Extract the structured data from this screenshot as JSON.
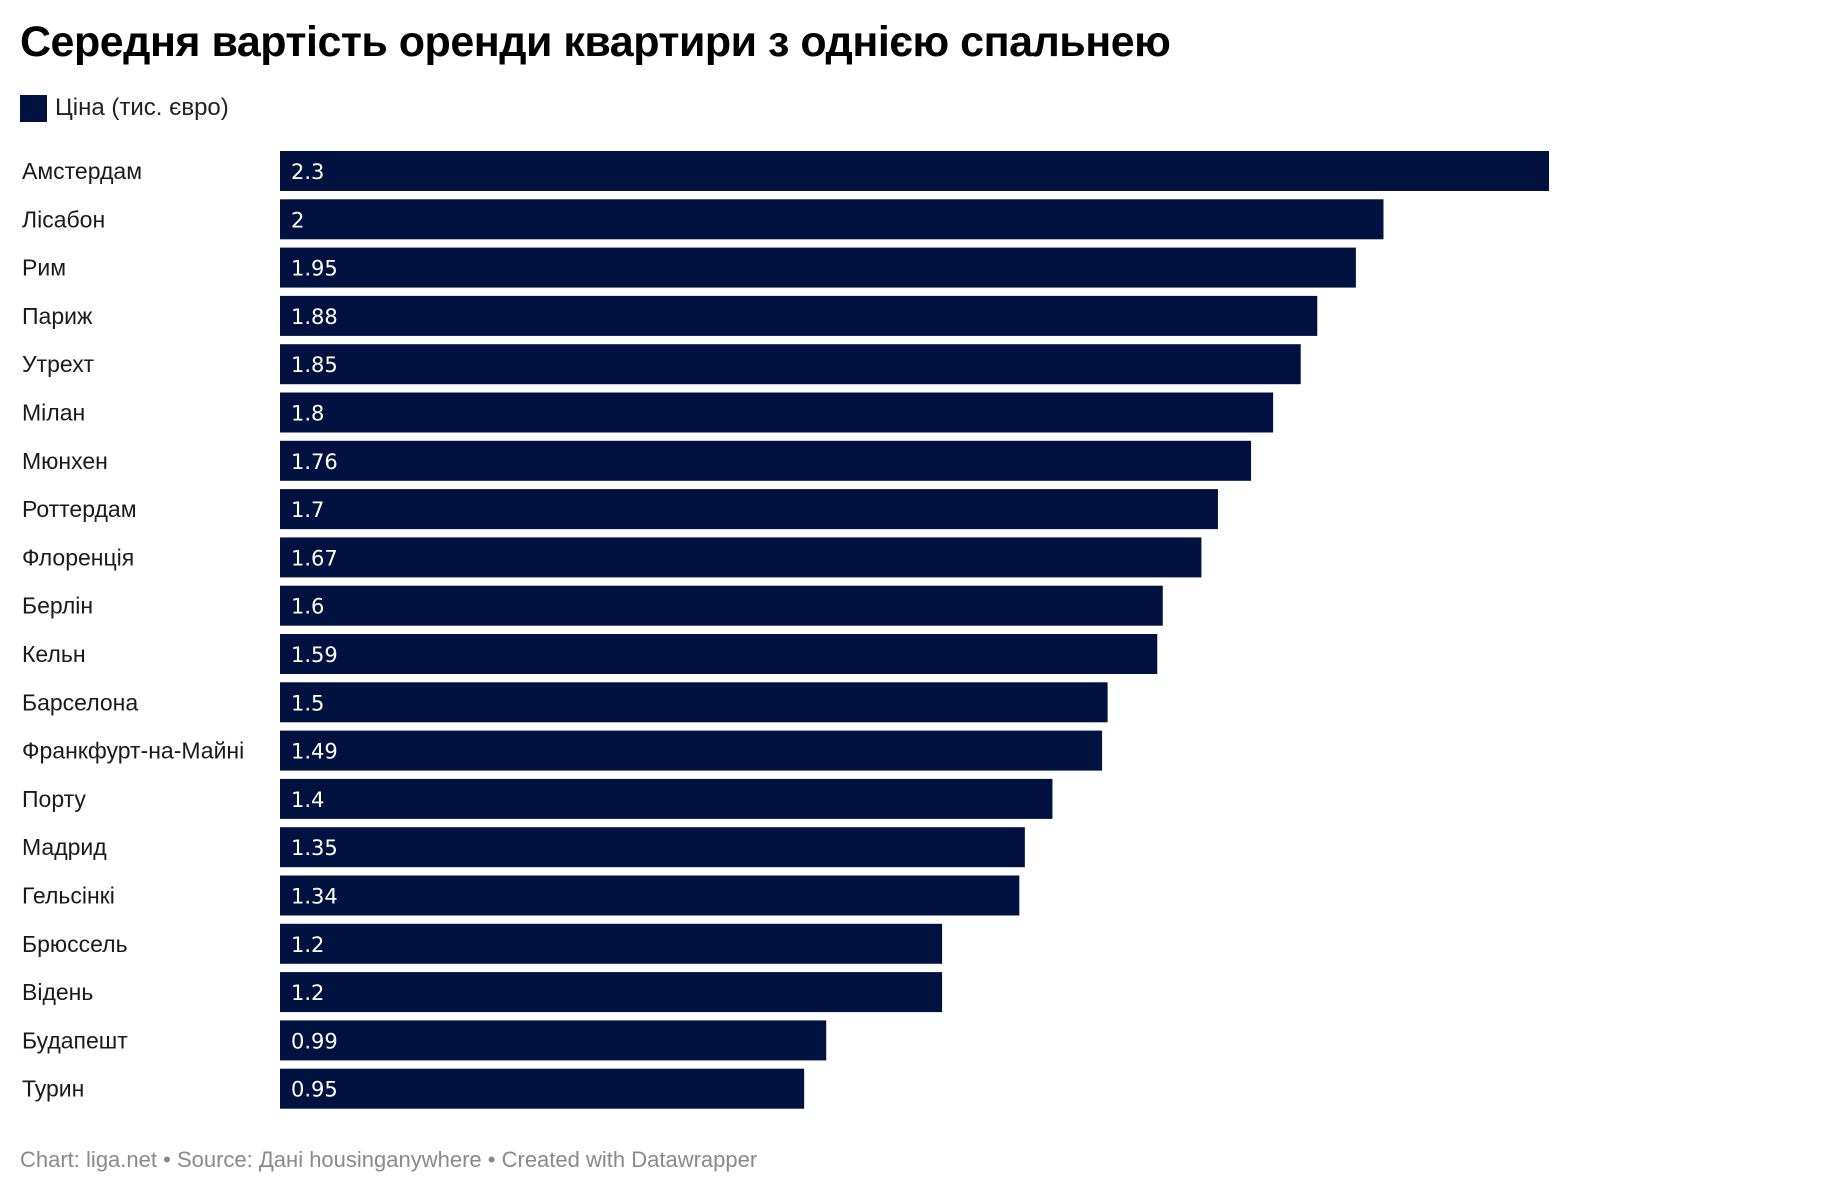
{
  "title": "Середня вартість оренди квартири з однією спальнею",
  "legend": {
    "label": "Ціна (тис. євро)",
    "color": "#021240"
  },
  "footer": {
    "chart_label": "Chart:",
    "chart_value": "liga.net",
    "source_label": "Source:",
    "source_value": "Дані housinganywhere",
    "created_with": "Created with Datawrapper",
    "separator": "•"
  },
  "chart_data": {
    "type": "bar",
    "orientation": "horizontal",
    "title": "Середня вартість оренди квартири з однією спальнею",
    "xlabel": "",
    "ylabel": "",
    "xlim": [
      0,
      2.3
    ],
    "grid": false,
    "legend_placement": "top-left",
    "bar_color": "#021240",
    "label_color": "#ffffff",
    "categories": [
      "Амстердам",
      "Лісабон",
      "Рим",
      "Париж",
      "Утрехт",
      "Мілан",
      "Мюнхен",
      "Роттердам",
      "Флоренція",
      "Берлін",
      "Кельн",
      "Барселона",
      "Франкфурт-на-Майні",
      "Порту",
      "Мадрид",
      "Гельсінкі",
      "Брюссель",
      "Відень",
      "Будапешт",
      "Турин"
    ],
    "series": [
      {
        "name": "Ціна (тис. євро)",
        "values": [
          2.3,
          2,
          1.95,
          1.88,
          1.85,
          1.8,
          1.76,
          1.7,
          1.67,
          1.6,
          1.59,
          1.5,
          1.49,
          1.4,
          1.35,
          1.34,
          1.2,
          1.2,
          0.99,
          0.95
        ],
        "labels": [
          "2.3",
          "2",
          "1.95",
          "1.88",
          "1.85",
          "1.8",
          "1.76",
          "1.7",
          "1.67",
          "1.6",
          "1.59",
          "1.5",
          "1.49",
          "1.4",
          "1.35",
          "1.34",
          "1.2",
          "1.2",
          "0.99",
          "0.95"
        ]
      }
    ]
  }
}
